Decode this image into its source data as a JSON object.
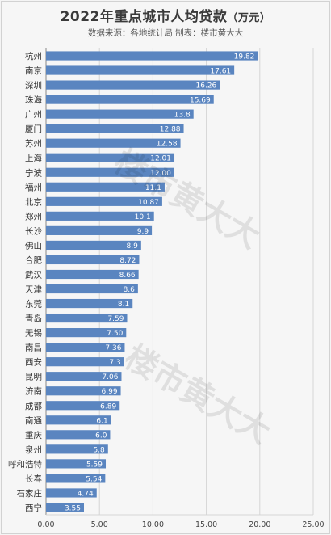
{
  "title_main": "2022年重点城市人均贷款",
  "title_unit": "（万元）",
  "subtitle": "数据来源：各地统计局 制表：楼市黄大大",
  "watermark": "楼市黄大大",
  "colors": {
    "bar": "#5a85c0",
    "grid": "#d5d5d5",
    "axis": "#888888",
    "text": "#333333"
  },
  "chart_data": {
    "type": "bar",
    "orientation": "horizontal",
    "title": "2022年重点城市人均贷款（万元）",
    "categories": [
      "杭州",
      "南京",
      "深圳",
      "珠海",
      "广州",
      "厦门",
      "苏州",
      "上海",
      "宁波",
      "福州",
      "北京",
      "郑州",
      "长沙",
      "佛山",
      "合肥",
      "武汉",
      "天津",
      "东莞",
      "青岛",
      "无锡",
      "南昌",
      "西安",
      "昆明",
      "济南",
      "成都",
      "南通",
      "重庆",
      "泉州",
      "呼和浩特",
      "长春",
      "石家庄",
      "西宁"
    ],
    "values": [
      19.82,
      17.61,
      16.26,
      15.69,
      13.8,
      12.88,
      12.58,
      12.01,
      12.0,
      11.1,
      10.87,
      10.1,
      9.9,
      8.9,
      8.72,
      8.66,
      8.6,
      8.1,
      7.59,
      7.5,
      7.36,
      7.3,
      7.06,
      6.99,
      6.89,
      6.1,
      6.0,
      5.8,
      5.59,
      5.54,
      4.74,
      3.55
    ],
    "labels": [
      "19.82",
      "17.61",
      "16.26",
      "15.69",
      "13.8",
      "12.88",
      "12.58",
      "12.01",
      "12.00",
      "11.1",
      "10.87",
      "10.1",
      "9.9",
      "8.9",
      "8.72",
      "8.66",
      "8.6",
      "8.1",
      "7.59",
      "7.50",
      "7.36",
      "7.3",
      "7.06",
      "6.99",
      "6.89",
      "6.1",
      "6.0",
      "5.8",
      "5.59",
      "5.54",
      "4.74",
      "3.55"
    ],
    "xlim": [
      0,
      25
    ],
    "xticks": [
      "0.00",
      "5.00",
      "10.00",
      "15.00",
      "20.00",
      "25.00"
    ],
    "grid": true
  }
}
